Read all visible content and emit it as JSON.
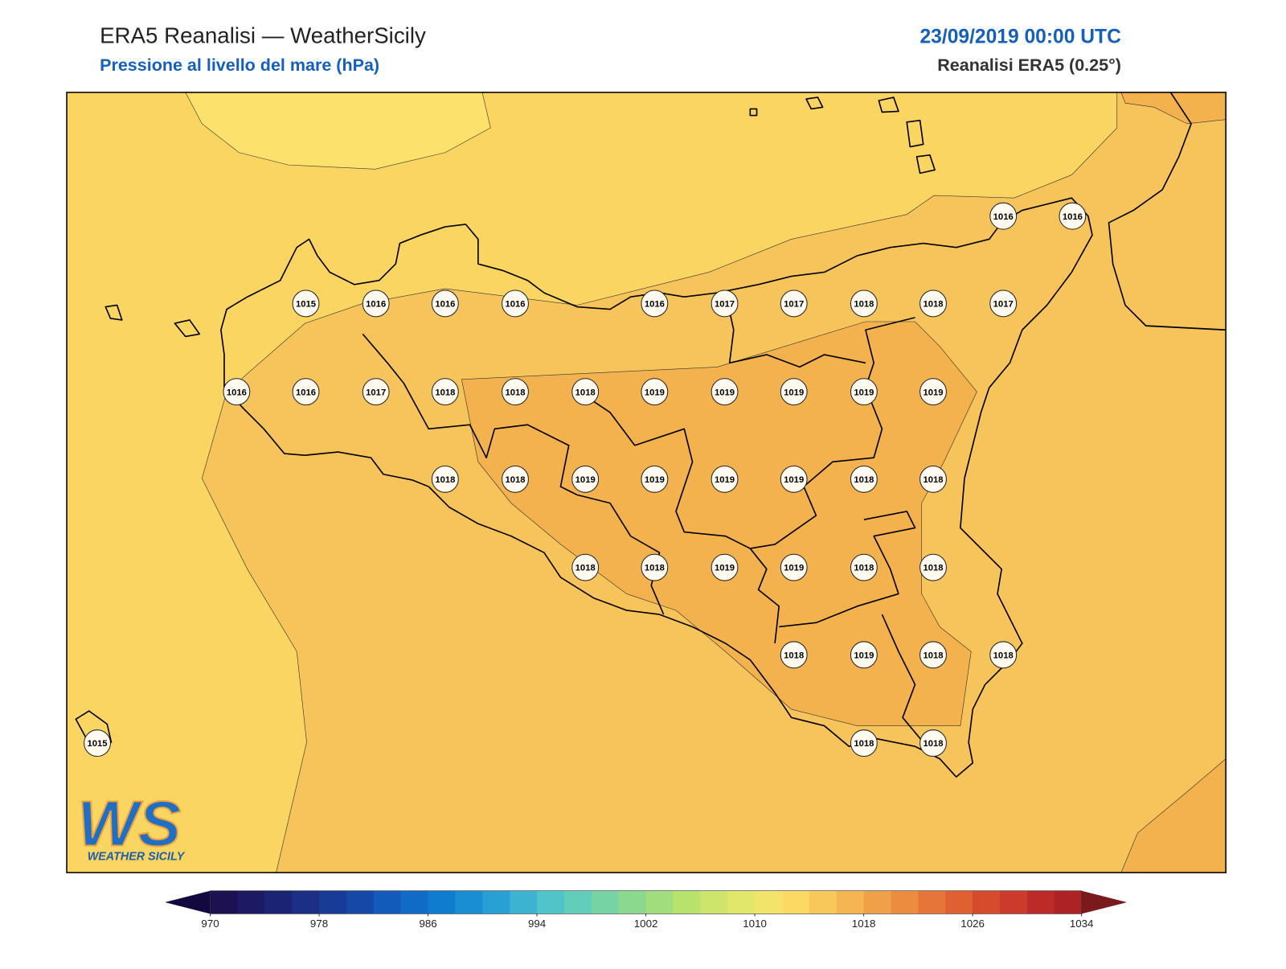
{
  "header": {
    "title": "ERA5 Reanalisi — WeatherSicily",
    "subtitle": "Pressione al livello del mare (hPa)",
    "datetime": "23/09/2019 00:00 UTC",
    "source": "Reanalisi ERA5 (0.25°)"
  },
  "stations": [
    1016,
    1016,
    1015,
    1016,
    1016,
    1016,
    1016,
    1017,
    1017,
    1018,
    1018,
    1017,
    1016,
    1016,
    1017,
    1018,
    1018,
    1018,
    1019,
    1019,
    1019,
    1019,
    1019,
    1018,
    1018,
    1019,
    1019,
    1019,
    1019,
    1018,
    1018,
    1018,
    1018,
    1019,
    1019,
    1018,
    1018,
    1018,
    1019,
    1018,
    1018,
    1015,
    1018,
    1018
  ],
  "colorbar": {
    "min": 970,
    "max": 1034,
    "ticks": [
      970,
      978,
      986,
      994,
      1002,
      1010,
      1018,
      1026,
      1034
    ]
  },
  "logo": {
    "mark": "WS",
    "text": "WEATHER SICILY"
  }
}
